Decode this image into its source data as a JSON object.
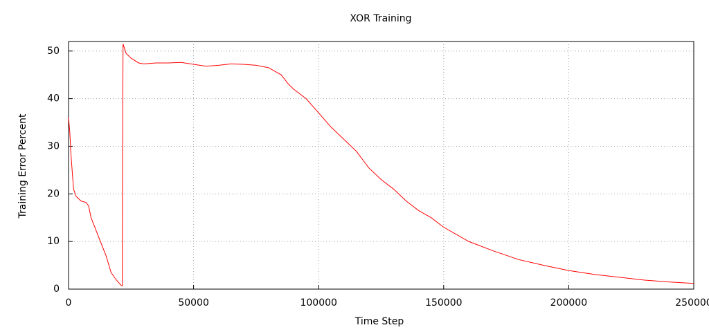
{
  "chart_data": {
    "type": "line",
    "title": "XOR Training",
    "x_label": "Time Step",
    "y_label": "Training Error Percent",
    "x": [
      0,
      500,
      1000,
      2000,
      3000,
      5000,
      7000,
      8000,
      9000,
      12000,
      15000,
      17000,
      19000,
      21000,
      21500,
      21600,
      21800,
      23000,
      25000,
      28000,
      30000,
      35000,
      40000,
      45000,
      50000,
      55000,
      60000,
      65000,
      70000,
      75000,
      80000,
      85000,
      88000,
      90000,
      95000,
      100000,
      105000,
      110000,
      115000,
      120000,
      125000,
      130000,
      135000,
      140000,
      145000,
      150000,
      155000,
      160000,
      170000,
      180000,
      190000,
      200000,
      210000,
      220000,
      230000,
      240000,
      250000
    ],
    "series": [
      {
        "name": "Training Error",
        "color": "#ff0000",
        "values": [
          36,
          33,
          28,
          21,
          19.5,
          18.5,
          18.2,
          17.5,
          15,
          11,
          7,
          3.5,
          2,
          0.8,
          0.7,
          26,
          51.5,
          49.5,
          48.5,
          47.5,
          47.3,
          47.5,
          47.5,
          47.6,
          47.2,
          46.8,
          47,
          47.3,
          47.2,
          47,
          46.5,
          45,
          43,
          42,
          40,
          37,
          34,
          31.5,
          29,
          25.5,
          23,
          21,
          18.5,
          16.5,
          15,
          13,
          11.5,
          10,
          8,
          6.2,
          5,
          3.9,
          3.1,
          2.5,
          1.9,
          1.5,
          1.2
        ]
      }
    ],
    "xlim": [
      0,
      250000
    ],
    "ylim": [
      0,
      52
    ],
    "xticks": [
      0,
      50000,
      100000,
      150000,
      200000,
      250000
    ],
    "yticks": [
      0,
      10,
      20,
      30,
      40,
      50
    ],
    "grid": true
  }
}
